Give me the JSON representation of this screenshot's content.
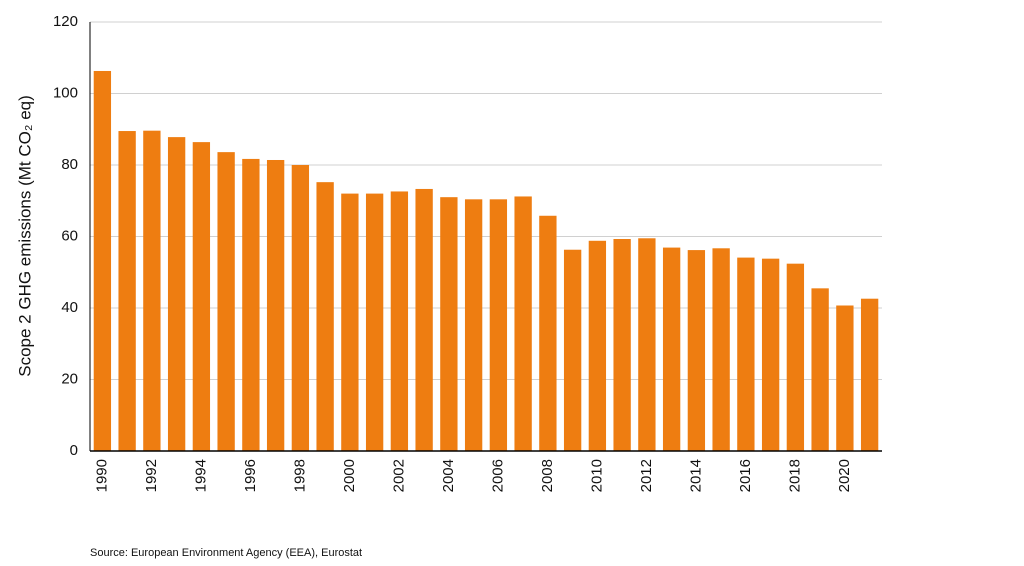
{
  "chart_data": {
    "type": "bar",
    "y_label": "Scope 2 GHG emissions (Mt CO₂ eq)",
    "source": "Source: European Environment Agency (EEA), Eurostat",
    "categories": [
      "1990",
      null,
      "1992",
      null,
      "1994",
      null,
      "1996",
      null,
      "1998",
      null,
      "2000",
      null,
      "2002",
      null,
      "2004",
      null,
      "2006",
      null,
      "2008",
      null,
      "2010",
      null,
      "2012",
      null,
      "2014",
      null,
      "2016",
      null,
      "2018",
      null,
      "2020",
      null
    ],
    "values": [
      106.3,
      89.5,
      89.6,
      87.8,
      86.4,
      83.6,
      81.7,
      81.4,
      80.0,
      75.2,
      72.0,
      72.0,
      72.6,
      73.3,
      71.0,
      70.4,
      70.4,
      71.2,
      65.8,
      56.3,
      58.8,
      59.3,
      59.5,
      56.9,
      56.2,
      56.7,
      54.1,
      53.8,
      52.4,
      45.5,
      40.7,
      42.6
    ],
    "color": "#ee7d11",
    "ylim": [
      0,
      120
    ],
    "yticks": [
      0,
      20,
      40,
      60,
      80,
      100,
      120
    ],
    "grid": true
  }
}
